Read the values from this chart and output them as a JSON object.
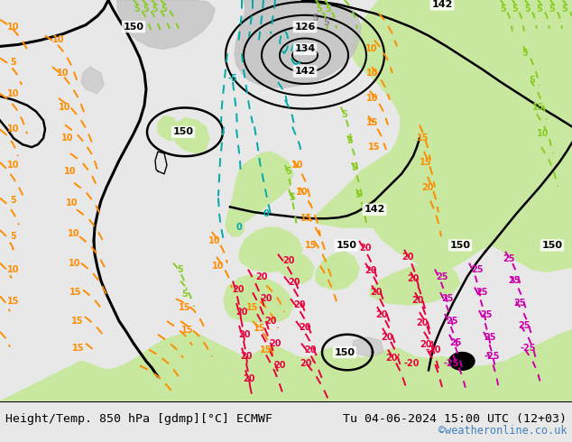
{
  "title_left": "Height/Temp. 850 hPa [gdmp][°C] ECMWF",
  "title_right": "Tu 04-06-2024 15:00 UTC (12+03)",
  "credit": "©weatheronline.co.uk",
  "bg_color": "#e8e8e8",
  "land_green": "#c8e8a0",
  "land_green2": "#d4eeac",
  "gray_land": "#c0c0c0",
  "sea_color": "#e0e0e0",
  "bottom_bar_color": "#ffffff",
  "text_color": "#000000",
  "credit_color": "#4080c0",
  "font_size_bottom": 10,
  "fig_width": 6.34,
  "fig_height": 4.9,
  "dpi": 100,
  "color_black": "#000000",
  "color_cyan": "#00aaaa",
  "color_orange": "#ff8c00",
  "color_green": "#88cc22",
  "color_red": "#e8003c",
  "color_magenta": "#cc00aa"
}
